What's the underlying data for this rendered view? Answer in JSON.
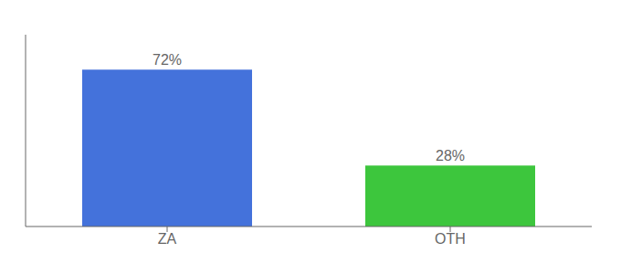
{
  "chart_data": {
    "type": "bar",
    "categories": [
      "ZA",
      "OTH"
    ],
    "values": [
      72,
      28
    ],
    "value_labels": [
      "72%",
      "28%"
    ],
    "colors": [
      "#4472db",
      "#3dc63d"
    ],
    "ylim": [
      0,
      88
    ],
    "yticks": [],
    "data_labels": true,
    "tick_labels": "x",
    "grid": false
  }
}
